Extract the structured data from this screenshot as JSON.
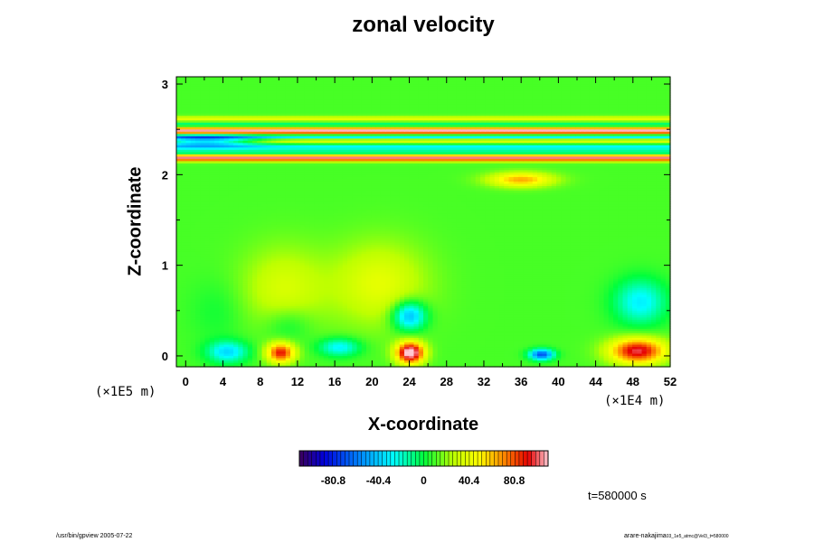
{
  "chart_data": {
    "type": "heatmap",
    "title": "zonal velocity",
    "xlabel": "X-coordinate",
    "ylabel": "Z-coordinate",
    "x_ticks": [
      0,
      4,
      8,
      12,
      16,
      20,
      24,
      28,
      32,
      36,
      40,
      44,
      48,
      52
    ],
    "y_ticks": [
      0,
      1,
      2,
      3
    ],
    "xlim": [
      -1,
      52
    ],
    "ylim": [
      -0.12,
      3.08
    ],
    "x_scale_label": "(×1E4 m)",
    "y_scale_label": "(×1E5 m)",
    "colorbar": {
      "range": [
        -111,
        111
      ],
      "tick_values": [
        -80.8,
        -40.4,
        0,
        40.4,
        80.8
      ],
      "tick_labels": [
        "-80.8",
        "-40.4",
        "0",
        "40.4",
        "80.8"
      ]
    },
    "background_value": 10,
    "bands": [
      {
        "z": 2.19,
        "width": 0.035,
        "value": 95
      },
      {
        "z": 2.25,
        "width": 0.025,
        "value": -28
      },
      {
        "z": 2.31,
        "width": 0.03,
        "value": -40
      },
      {
        "z": 2.38,
        "width": 0.03,
        "value": 30
      },
      {
        "z": 2.42,
        "width": 0.025,
        "value": -45
      },
      {
        "z": 2.49,
        "width": 0.035,
        "value": 100
      },
      {
        "z": 2.56,
        "width": 0.03,
        "value": -20
      },
      {
        "z": 2.62,
        "width": 0.03,
        "value": 30
      }
    ],
    "blobs": [
      {
        "x": 4.5,
        "z": 0.05,
        "rx": 2.2,
        "rz": 0.12,
        "value": -45
      },
      {
        "x": 10.2,
        "z": 0.04,
        "rx": 1.5,
        "rz": 0.11,
        "value": 80
      },
      {
        "x": 16.5,
        "z": 0.1,
        "rx": 2.2,
        "rz": 0.1,
        "value": -40
      },
      {
        "x": 24.1,
        "z": 0.04,
        "rx": 1.5,
        "rz": 0.12,
        "value": 110
      },
      {
        "x": 24.0,
        "z": 0.45,
        "rx": 1.8,
        "rz": 0.16,
        "value": -60
      },
      {
        "x": 38.2,
        "z": 0.02,
        "rx": 1.3,
        "rz": 0.06,
        "value": -80
      },
      {
        "x": 48.5,
        "z": 0.06,
        "rx": 3.0,
        "rz": 0.14,
        "value": 90
      },
      {
        "x": 48.8,
        "z": 0.6,
        "rx": 2.8,
        "rz": 0.25,
        "value": -40
      },
      {
        "x": 10.5,
        "z": 0.75,
        "rx": 4.5,
        "rz": 0.45,
        "value": 25
      },
      {
        "x": 20.8,
        "z": 0.8,
        "rx": 5.0,
        "rz": 0.45,
        "value": 30
      },
      {
        "x": 36.0,
        "z": 1.95,
        "rx": 3.5,
        "rz": 0.08,
        "value": 55
      },
      {
        "x": 11.0,
        "z": 0.35,
        "rx": 2.5,
        "rz": 0.2,
        "value": -15
      },
      {
        "x": 3.5,
        "z": 0.5,
        "rx": 3.0,
        "rz": 0.35,
        "value": -8
      },
      {
        "x": 2.0,
        "z": 2.38,
        "rx": 5.5,
        "rz": 0.06,
        "value": -70
      }
    ]
  },
  "time_label": "t=580000 s",
  "footer_left": "/usr/bin/gpview 2005-07-22",
  "footer_right_main": "arare-nakajima",
  "footer_right_sub": "03_1e5_atmc@Vel3_t=580000"
}
